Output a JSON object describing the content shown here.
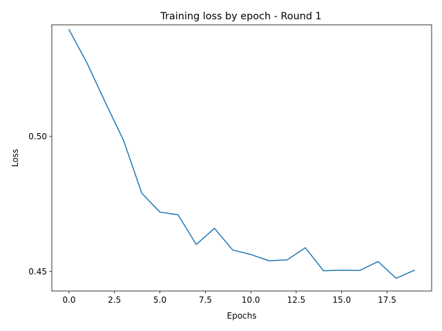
{
  "chart_data": {
    "type": "line",
    "title": "Training loss by epoch - Round 1",
    "xlabel": "Epochs",
    "ylabel": "Loss",
    "xlim": [
      -0.95,
      19.95
    ],
    "ylim": [
      0.4428,
      0.5413
    ],
    "xticks": [
      0,
      2.5,
      5,
      7.5,
      10,
      12.5,
      15,
      17.5
    ],
    "xtick_labels": [
      "0.0",
      "2.5",
      "5.0",
      "7.5",
      "10.0",
      "12.5",
      "15.0",
      "17.5"
    ],
    "yticks": [
      0.45,
      0.5
    ],
    "ytick_labels": [
      "0.45",
      "0.50"
    ],
    "grid": false,
    "series": [
      {
        "color": "#1f77b4",
        "x": [
          0,
          1,
          2,
          3,
          4,
          5,
          6,
          7,
          8,
          9,
          10,
          11,
          12,
          13,
          14,
          15,
          16,
          17,
          18,
          19
        ],
        "y": [
          0.5395,
          0.527,
          0.5125,
          0.4985,
          0.479,
          0.472,
          0.471,
          0.46,
          0.466,
          0.458,
          0.4563,
          0.454,
          0.4543,
          0.4588,
          0.4503,
          0.4505,
          0.4504,
          0.4537,
          0.4475,
          0.4505
        ]
      }
    ]
  }
}
